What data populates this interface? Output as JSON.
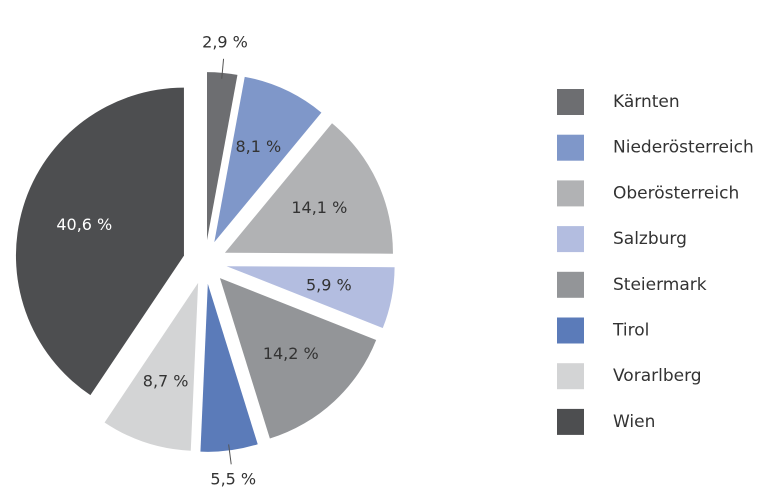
{
  "chart_data": {
    "type": "pie",
    "categories": [
      "Kärnten",
      "Niederösterreich",
      "Oberösterreich",
      "Salzburg",
      "Steiermark",
      "Tirol",
      "Vorarlberg",
      "Wien"
    ],
    "values": [
      2.9,
      8.1,
      14.1,
      5.9,
      14.2,
      5.5,
      8.7,
      40.6
    ],
    "value_labels": [
      "2,9 %",
      "8,1 %",
      "14,1 %",
      "5,9 %",
      "14,2 %",
      "5,5 %",
      "8,7 %",
      "40,6 %"
    ],
    "colors": [
      "#6d6e71",
      "#7f97c9",
      "#b1b2b4",
      "#b3bde0",
      "#939598",
      "#5b7bb9",
      "#d3d4d5",
      "#4d4e50"
    ],
    "legend": "right"
  }
}
